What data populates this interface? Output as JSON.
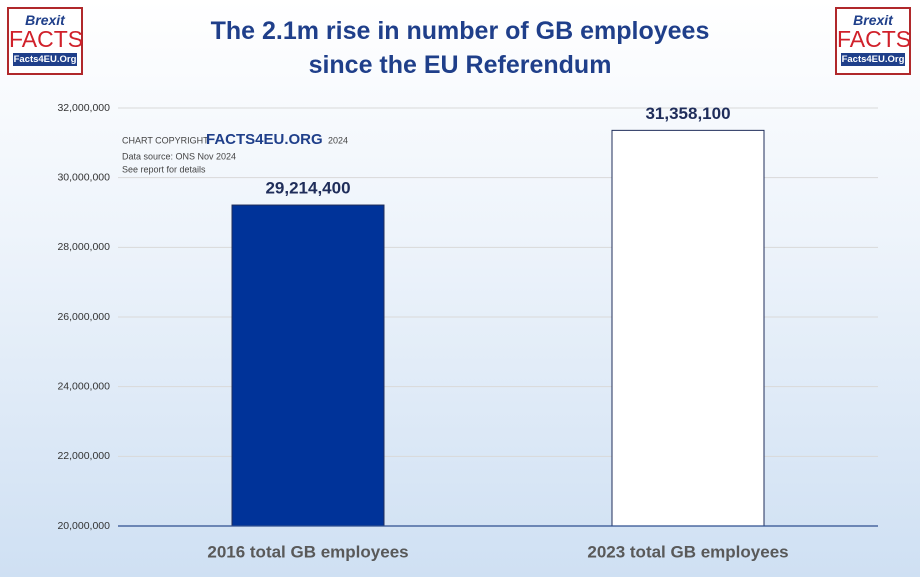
{
  "chart_data": {
    "type": "bar",
    "title": "The 2.1m rise in number of GB employees since the EU Referendum",
    "categories": [
      "2016 total GB employees",
      "2023 total GB employees"
    ],
    "values": [
      29214400,
      31358100
    ],
    "value_labels": [
      "29,214,400",
      "31,358,100"
    ],
    "ylim": [
      20000000,
      32000000
    ],
    "yticks": [
      {
        "value": 20000000,
        "label": "20,000,000"
      },
      {
        "value": 22000000,
        "label": "22,000,000"
      },
      {
        "value": 24000000,
        "label": "24,000,000"
      },
      {
        "value": 26000000,
        "label": "26,000,000"
      },
      {
        "value": 28000000,
        "label": "28,000,000"
      },
      {
        "value": 30000000,
        "label": "30,000,000"
      },
      {
        "value": 32000000,
        "label": "32,000,000"
      }
    ],
    "grid": true,
    "annotations": {
      "copyright": "CHART COPYRIGHT",
      "brand": "FACTS4EU.ORG",
      "year": "2024",
      "source": "Data source: ONS Nov 2024",
      "note": "See report for details"
    }
  },
  "logo": {
    "top": "Brexit",
    "main": "FACTS",
    "site": "Facts4EU.Org"
  }
}
